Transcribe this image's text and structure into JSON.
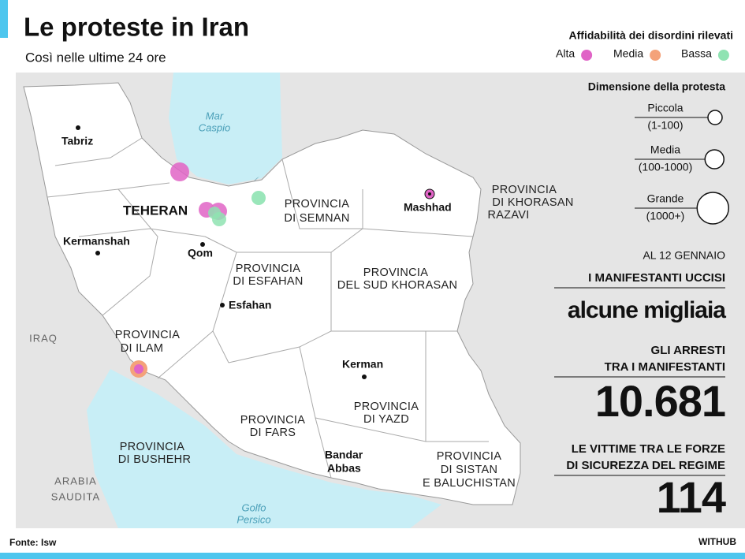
{
  "header": {
    "title": "Le proteste in Iran",
    "subtitle": "Così nelle ultime 24 ore"
  },
  "legend": {
    "reliability_title": "Affidabilità dei disordini rilevati",
    "reliability": [
      {
        "label": "Alta",
        "color": "#e064c6"
      },
      {
        "label": "Media",
        "color": "#f4a27a"
      },
      {
        "label": "Bassa",
        "color": "#8fe3b2"
      }
    ],
    "size_title": "Dimensione della protesta",
    "sizes": [
      {
        "label": "Piccola",
        "range": "(1-100)"
      },
      {
        "label": "Media",
        "range": "(100-1000)"
      },
      {
        "label": "Grande",
        "range": "(1000+)"
      }
    ]
  },
  "map": {
    "seas": [
      [
        "Mar",
        "Caspio"
      ],
      [
        "Golfo",
        "Persico"
      ]
    ],
    "countries": [
      [
        "IRAQ"
      ],
      [
        "ARABIA",
        "SAUDITA"
      ]
    ],
    "cities": [
      [
        "Tabriz"
      ],
      [
        "TEHERAN"
      ],
      [
        "Kermanshah"
      ],
      [
        "Qom"
      ],
      [
        "Esfahan"
      ],
      [
        "Mashhad"
      ],
      [
        "Kerman"
      ],
      [
        "Bandar",
        "Abbas"
      ]
    ],
    "provinces": [
      [
        "PROVINCIA",
        "DI SEMNAN"
      ],
      [
        "PROVINCIA",
        "DI KHORASAN",
        "RAZAVI"
      ],
      [
        "PROVINCIA",
        "DI ESFAHAN"
      ],
      [
        "PROVINCIA",
        "DEL SUD KHORASAN"
      ],
      [
        "PROVINCIA",
        "DI ILAM"
      ],
      [
        "PROVINCIA",
        "DI YAZD"
      ],
      [
        "PROVINCIA",
        "DI FARS"
      ],
      [
        "PROVINCIA",
        "DI BUSHEHR"
      ],
      [
        "PROVINCIA",
        "DI SISTAN",
        "E BALUCHISTAN"
      ]
    ]
  },
  "stats": {
    "date": "AL 12 GENNAIO",
    "items": [
      {
        "label": [
          "I MANIFESTANTI UCCISI"
        ],
        "value": "alcune migliaia"
      },
      {
        "label": [
          "GLI ARRESTI",
          "TRA I MANIFESTANTI"
        ],
        "value": "10.681"
      },
      {
        "label": [
          "LE VITTIME TRA LE FORZE",
          "DI SICUREZZA DEL REGIME"
        ],
        "value": "114"
      }
    ]
  },
  "footer": {
    "source": "Fonte: Isw",
    "brand": "WITHUB"
  }
}
